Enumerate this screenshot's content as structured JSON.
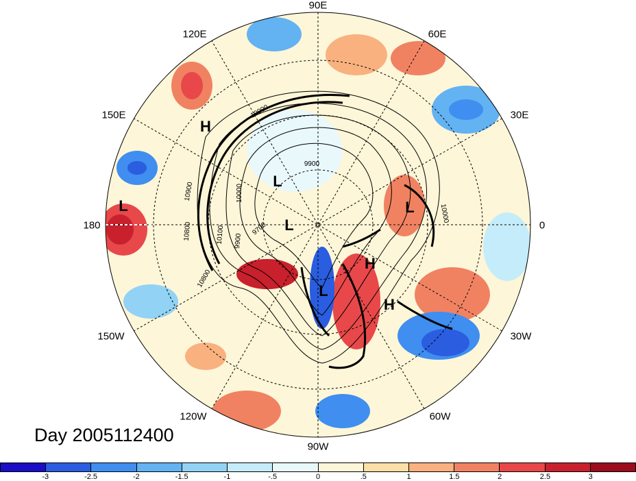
{
  "title": "Day 2005112400",
  "longitude_labels": [
    "90E",
    "60E",
    "30E",
    "0",
    "30W",
    "60W",
    "90W",
    "120W",
    "150W",
    "180",
    "150E",
    "120E"
  ],
  "pressure_systems": [
    {
      "type": "H",
      "label": "H"
    },
    {
      "type": "L",
      "label": "L"
    },
    {
      "type": "L",
      "label": "L"
    },
    {
      "type": "L",
      "label": "L"
    },
    {
      "type": "L",
      "label": "L"
    },
    {
      "type": "H",
      "label": "H"
    },
    {
      "type": "L",
      "label": "L"
    },
    {
      "type": "H",
      "label": "H"
    }
  ],
  "contour_labels": [
    "9900",
    "10000",
    "10900",
    "10800",
    "10100",
    "9900",
    "9700",
    "10000",
    "10800",
    "10900"
  ],
  "colorbar": {
    "colors": [
      "#1a0fc4",
      "#2a5de0",
      "#3f8ef0",
      "#63b2f2",
      "#92d2f5",
      "#c5ecfa",
      "#e9f8fb",
      "#fdf6d8",
      "#fbdfa6",
      "#f8b17f",
      "#f08262",
      "#e8484a",
      "#c8202c",
      "#9b0d1c"
    ],
    "tick_labels": [
      "-3",
      "-2.5",
      "-2",
      "-1.5",
      "-1",
      "-.5",
      "0",
      ".5",
      "1",
      "1.5",
      "2",
      "2.5",
      "3"
    ]
  }
}
